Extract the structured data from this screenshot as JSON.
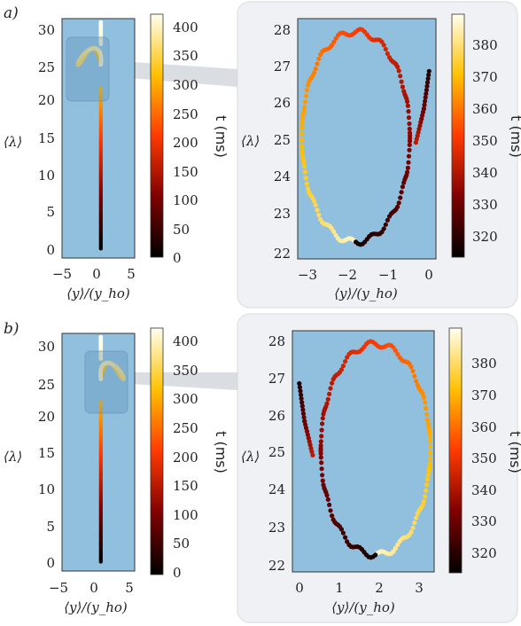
{
  "panels": [
    {
      "label": "a)",
      "overview": {
        "xticks": [
          "−5",
          "0",
          "5"
        ],
        "yticks": [
          "0",
          "5",
          "10",
          "15",
          "20",
          "25",
          "30"
        ],
        "xlabel": "⟨y⟩/(y_ho)",
        "ylabel": "⟨λ⟩",
        "cbar_ticks": [
          "0",
          "50",
          "100",
          "150",
          "200",
          "250",
          "300",
          "350",
          "400"
        ],
        "cbar_label": "t (ms)"
      },
      "zoom": {
        "xticks": [
          "−3",
          "−2",
          "−1",
          "0"
        ],
        "yticks": [
          "22",
          "23",
          "24",
          "25",
          "26",
          "27",
          "28"
        ],
        "xlabel": "⟨y⟩/(y_ho)",
        "ylabel": "⟨λ⟩",
        "cbar_ticks": [
          "320",
          "330",
          "340",
          "350",
          "360",
          "370",
          "380"
        ],
        "cbar_label": "t (ms)"
      }
    },
    {
      "label": "b)",
      "overview": {
        "xticks": [
          "−5",
          "0",
          "5"
        ],
        "yticks": [
          "0",
          "5",
          "10",
          "15",
          "20",
          "25",
          "30"
        ],
        "xlabel": "⟨y⟩/(y_ho)",
        "ylabel": "⟨λ⟩",
        "cbar_ticks": [
          "0",
          "50",
          "100",
          "150",
          "200",
          "250",
          "300",
          "350",
          "400"
        ],
        "cbar_label": "t (ms)"
      },
      "zoom": {
        "xticks": [
          "0",
          "1",
          "2",
          "3"
        ],
        "yticks": [
          "22",
          "23",
          "24",
          "25",
          "26",
          "27",
          "28"
        ],
        "xlabel": "⟨y⟩/(y_ho)",
        "ylabel": "⟨λ⟩",
        "cbar_ticks": [
          "320",
          "330",
          "340",
          "350",
          "360",
          "370",
          "380"
        ],
        "cbar_label": "t (ms)"
      }
    }
  ],
  "chart_data": [
    {
      "type": "scatter",
      "panel": "a) overview",
      "xlabel": "⟨y⟩/(y_ho)",
      "ylabel": "⟨λ⟩",
      "xlim": [
        -5.5,
        4.8
      ],
      "ylim": [
        -1.3,
        31.5
      ],
      "colorbar": {
        "label": "t (ms)",
        "range": [
          0,
          410
        ],
        "colormap": "afmhot"
      },
      "trajectory_segments": [
        {
          "description": "vertical drift",
          "y_const": 0,
          "lambda_range": [
            0,
            22
          ],
          "t_range": [
            0,
            300
          ]
        },
        {
          "description": "figure-eight loop",
          "center": [
            -0.15,
            25
          ],
          "lambda_range": [
            22,
            28
          ],
          "y_range": [
            -3.2,
            0
          ],
          "t_range": [
            300,
            390
          ]
        },
        {
          "description": "upper vertical",
          "y_const": 0,
          "lambda_range": [
            28,
            31
          ],
          "t_range": [
            390,
            410
          ]
        }
      ],
      "zoom_box": {
        "y_range": [
          -3.5,
          0.5
        ],
        "lambda_range": [
          21.5,
          28.5
        ]
      }
    },
    {
      "type": "scatter",
      "panel": "a) zoom",
      "xlabel": "⟨y⟩/(y_ho)",
      "ylabel": "⟨λ⟩",
      "xlim": [
        -3.3,
        0.15
      ],
      "ylim": [
        21.8,
        28.2
      ],
      "colorbar": {
        "label": "t (ms)",
        "range": [
          312,
          388
        ],
        "colormap": "afmhot"
      },
      "loop": {
        "center": [
          -1.85,
          25.05
        ],
        "y_amplitude": 1.35,
        "lambda_amplitude": 2.8,
        "ripple_amplitude": 0.08,
        "t_range": [
          315,
          385
        ]
      },
      "entry_tail": [
        [
          -0.02,
          26.8
        ],
        [
          -0.15,
          25.8
        ],
        [
          -0.35,
          24.9
        ]
      ]
    },
    {
      "type": "scatter",
      "panel": "b) overview",
      "xlabel": "⟨y⟩/(y_ho)",
      "ylabel": "⟨λ⟩",
      "xlim": [
        -5.5,
        4.8
      ],
      "ylim": [
        -1.3,
        31.5
      ],
      "colorbar": {
        "label": "t (ms)",
        "range": [
          0,
          410
        ],
        "colormap": "afmhot"
      },
      "trajectory_segments": [
        {
          "description": "vertical drift",
          "y_const": 0,
          "lambda_range": [
            0,
            22
          ],
          "t_range": [
            0,
            300
          ]
        },
        {
          "description": "figure-eight loop",
          "center": [
            0.15,
            25
          ],
          "lambda_range": [
            22,
            28
          ],
          "y_range": [
            0,
            3.2
          ],
          "t_range": [
            300,
            390
          ]
        },
        {
          "description": "upper vertical",
          "y_const": 0,
          "lambda_range": [
            28,
            31
          ],
          "t_range": [
            390,
            410
          ]
        }
      ],
      "zoom_box": {
        "y_range": [
          -0.5,
          3.5
        ],
        "lambda_range": [
          21.5,
          28.5
        ]
      }
    },
    {
      "type": "scatter",
      "panel": "b) zoom",
      "xlabel": "⟨y⟩/(y_ho)",
      "ylabel": "⟨λ⟩",
      "xlim": [
        -0.15,
        3.35
      ],
      "ylim": [
        21.8,
        28.2
      ],
      "colorbar": {
        "label": "t (ms)",
        "range": [
          312,
          388
        ],
        "colormap": "afmhot"
      },
      "loop": {
        "center": [
          1.9,
          25.05
        ],
        "y_amplitude": 1.35,
        "lambda_amplitude": 2.8,
        "ripple_amplitude": 0.08,
        "t_range": [
          315,
          385
        ]
      },
      "entry_tail": [
        [
          0.02,
          26.8
        ],
        [
          0.15,
          25.8
        ],
        [
          0.35,
          24.9
        ]
      ]
    }
  ]
}
